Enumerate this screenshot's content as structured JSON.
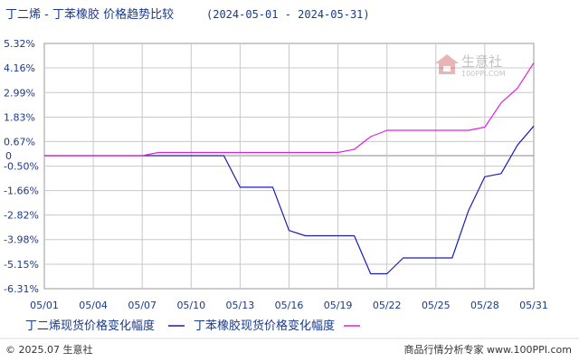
{
  "title_main": "丁二烯 - 丁苯橡胶 价格趋势比较",
  "title_range": "(2024-05-01 - 2024-05-31)",
  "watermark": {
    "brand_cn": "生意社",
    "brand_url": "100PPI.COM"
  },
  "footer": {
    "left": "© 2025.07 生意社",
    "right": "商品行情分析专家 www.100PPI.com"
  },
  "colors": {
    "series1": "#1c1cb4",
    "series2": "#e020e0",
    "zero_line": "#888888",
    "axis_text": "#1a3a8a"
  },
  "chart_data": {
    "type": "line",
    "title": "丁二烯 - 丁苯橡胶 价格趋势比较",
    "date_range": "(2024-05-01 - 2024-05-31)",
    "x_ticks": [
      "05/01",
      "05/04",
      "05/07",
      "05/10",
      "05/13",
      "05/16",
      "05/19",
      "05/22",
      "05/25",
      "05/28",
      "05/31"
    ],
    "y_ticks": [
      "5.32%",
      "4.16%",
      "2.99%",
      "1.83%",
      "0.67%",
      "0",
      "-0.50%",
      "-1.66%",
      "-2.82%",
      "-3.98%",
      "-5.15%",
      "-6.31%"
    ],
    "y_tick_values": [
      5.32,
      4.16,
      2.99,
      1.83,
      0.67,
      0,
      -0.5,
      -1.66,
      -2.82,
      -3.98,
      -5.15,
      -6.31
    ],
    "ylim": [
      -6.31,
      5.32
    ],
    "x_day_range": [
      1,
      31
    ],
    "grid": true,
    "legend_placement": "bottom",
    "series": [
      {
        "name": "丁二烯现货价格变化幅度",
        "x": [
          1,
          7,
          12,
          13,
          15,
          16,
          17,
          20,
          21,
          22,
          23,
          26,
          27,
          28,
          29,
          30,
          31
        ],
        "values": [
          0,
          0,
          0,
          -1.5,
          -1.5,
          -3.55,
          -3.8,
          -3.8,
          -5.6,
          -5.6,
          -4.85,
          -4.85,
          -2.6,
          -1.0,
          -0.85,
          0.5,
          1.4
        ]
      },
      {
        "name": "丁苯橡胶现货价格变化幅度",
        "x": [
          1,
          7,
          8,
          19,
          20,
          21,
          22,
          27,
          28,
          29,
          30,
          31
        ],
        "values": [
          0,
          0,
          0.15,
          0.15,
          0.3,
          0.9,
          1.2,
          1.2,
          1.35,
          2.5,
          3.2,
          4.4
        ]
      }
    ]
  }
}
